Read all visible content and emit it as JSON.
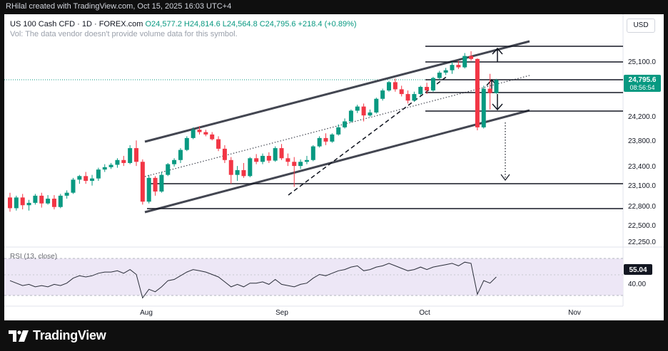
{
  "header": {
    "credit": "RHilal created with TradingView.com, Oct 15, 2025 16:03 UTC+4"
  },
  "symbol": {
    "name": "US 100 Cash CFD · 1D · FOREX.com",
    "ohlc": "O24,577.2 H24,814.6 L24,564.8 C24,795.6 +218.4 (+0.89%)",
    "vol_note": "Vol: The data vendor doesn't provide volume data for this symbol.",
    "currency": "USD"
  },
  "price_scale": {
    "ticks": [
      "25,100.0",
      "24,200.0",
      "23,800.0",
      "23,400.0",
      "23,100.0",
      "22,800.0",
      "22,500.0",
      "22,250.0"
    ],
    "last_price": "24,795.6",
    "countdown": "08:56:54"
  },
  "time_axis": {
    "labels": [
      "Aug",
      "Sep",
      "Oct",
      "Nov"
    ]
  },
  "rsi": {
    "title": "RSI (13, close)",
    "value": "55.04",
    "tick": "40.00"
  },
  "brand": {
    "logo_text": "TradingView"
  },
  "colors": {
    "up": "#089981",
    "down": "#f23645",
    "rsi_line": "#2a2e39",
    "rsi_band": "#ede7f6"
  },
  "chart_data": {
    "type": "candlestick",
    "symbol": "US 100 Cash CFD",
    "interval": "1D",
    "y_range": [
      22250,
      25300
    ],
    "x_labels": [
      "Aug",
      "Sep",
      "Oct",
      "Nov"
    ],
    "candles": [
      {
        "o": 22820,
        "h": 22900,
        "l": 22580,
        "c": 22640
      },
      {
        "o": 22640,
        "h": 22850,
        "l": 22600,
        "c": 22820
      },
      {
        "o": 22820,
        "h": 22880,
        "l": 22620,
        "c": 22690
      },
      {
        "o": 22690,
        "h": 22780,
        "l": 22600,
        "c": 22730
      },
      {
        "o": 22730,
        "h": 22880,
        "l": 22700,
        "c": 22850
      },
      {
        "o": 22850,
        "h": 22900,
        "l": 22650,
        "c": 22720
      },
      {
        "o": 22720,
        "h": 22860,
        "l": 22700,
        "c": 22800
      },
      {
        "o": 22800,
        "h": 22860,
        "l": 22620,
        "c": 22660
      },
      {
        "o": 22660,
        "h": 22880,
        "l": 22640,
        "c": 22850
      },
      {
        "o": 22850,
        "h": 22940,
        "l": 22800,
        "c": 22900
      },
      {
        "o": 22900,
        "h": 23150,
        "l": 22880,
        "c": 23120
      },
      {
        "o": 23120,
        "h": 23200,
        "l": 23050,
        "c": 23180
      },
      {
        "o": 23180,
        "h": 23250,
        "l": 23050,
        "c": 23100
      },
      {
        "o": 23100,
        "h": 23200,
        "l": 23020,
        "c": 23140
      },
      {
        "o": 23140,
        "h": 23320,
        "l": 23100,
        "c": 23290
      },
      {
        "o": 23290,
        "h": 23380,
        "l": 23250,
        "c": 23330
      },
      {
        "o": 23330,
        "h": 23400,
        "l": 23300,
        "c": 23370
      },
      {
        "o": 23370,
        "h": 23480,
        "l": 23320,
        "c": 23450
      },
      {
        "o": 23450,
        "h": 23520,
        "l": 23350,
        "c": 23400
      },
      {
        "o": 23400,
        "h": 23700,
        "l": 23380,
        "c": 23650
      },
      {
        "o": 23650,
        "h": 23780,
        "l": 23350,
        "c": 23420
      },
      {
        "o": 23420,
        "h": 23460,
        "l": 22700,
        "c": 22750
      },
      {
        "o": 22750,
        "h": 23200,
        "l": 22720,
        "c": 23150
      },
      {
        "o": 23150,
        "h": 23180,
        "l": 22850,
        "c": 22920
      },
      {
        "o": 22920,
        "h": 23250,
        "l": 22900,
        "c": 23200
      },
      {
        "o": 23200,
        "h": 23400,
        "l": 23180,
        "c": 23380
      },
      {
        "o": 23380,
        "h": 23480,
        "l": 23340,
        "c": 23450
      },
      {
        "o": 23450,
        "h": 23650,
        "l": 23400,
        "c": 23620
      },
      {
        "o": 23620,
        "h": 23850,
        "l": 23600,
        "c": 23820
      },
      {
        "o": 23820,
        "h": 24000,
        "l": 23800,
        "c": 23960
      },
      {
        "o": 23960,
        "h": 24020,
        "l": 23880,
        "c": 23920
      },
      {
        "o": 23920,
        "h": 23960,
        "l": 23850,
        "c": 23880
      },
      {
        "o": 23880,
        "h": 23920,
        "l": 23780,
        "c": 23800
      },
      {
        "o": 23800,
        "h": 23850,
        "l": 23600,
        "c": 23640
      },
      {
        "o": 23640,
        "h": 23700,
        "l": 23400,
        "c": 23450
      },
      {
        "o": 23450,
        "h": 23500,
        "l": 23050,
        "c": 23200
      },
      {
        "o": 23200,
        "h": 23350,
        "l": 23100,
        "c": 23280
      },
      {
        "o": 23280,
        "h": 23400,
        "l": 23150,
        "c": 23180
      },
      {
        "o": 23180,
        "h": 23500,
        "l": 23160,
        "c": 23480
      },
      {
        "o": 23480,
        "h": 23550,
        "l": 23380,
        "c": 23420
      },
      {
        "o": 23420,
        "h": 23560,
        "l": 23380,
        "c": 23520
      },
      {
        "o": 23520,
        "h": 23580,
        "l": 23400,
        "c": 23440
      },
      {
        "o": 23440,
        "h": 23680,
        "l": 23420,
        "c": 23650
      },
      {
        "o": 23650,
        "h": 23720,
        "l": 23450,
        "c": 23480
      },
      {
        "o": 23480,
        "h": 23560,
        "l": 23350,
        "c": 23420
      },
      {
        "o": 23420,
        "h": 23500,
        "l": 23000,
        "c": 23350
      },
      {
        "o": 23350,
        "h": 23460,
        "l": 23300,
        "c": 23420
      },
      {
        "o": 23420,
        "h": 23520,
        "l": 23380,
        "c": 23450
      },
      {
        "o": 23450,
        "h": 23700,
        "l": 23430,
        "c": 23680
      },
      {
        "o": 23680,
        "h": 23850,
        "l": 23660,
        "c": 23820
      },
      {
        "o": 23820,
        "h": 23900,
        "l": 23700,
        "c": 23760
      },
      {
        "o": 23760,
        "h": 23900,
        "l": 23740,
        "c": 23880
      },
      {
        "o": 23880,
        "h": 24050,
        "l": 23860,
        "c": 24000
      },
      {
        "o": 24000,
        "h": 24150,
        "l": 23980,
        "c": 24100
      },
      {
        "o": 24100,
        "h": 24300,
        "l": 24080,
        "c": 24280
      },
      {
        "o": 24280,
        "h": 24380,
        "l": 24240,
        "c": 24350
      },
      {
        "o": 24350,
        "h": 24400,
        "l": 24100,
        "c": 24200
      },
      {
        "o": 24200,
        "h": 24300,
        "l": 24180,
        "c": 24250
      },
      {
        "o": 24250,
        "h": 24500,
        "l": 24230,
        "c": 24480
      },
      {
        "o": 24480,
        "h": 24650,
        "l": 24450,
        "c": 24620
      },
      {
        "o": 24620,
        "h": 24780,
        "l": 24600,
        "c": 24760
      },
      {
        "o": 24760,
        "h": 24820,
        "l": 24600,
        "c": 24640
      },
      {
        "o": 24640,
        "h": 24700,
        "l": 24520,
        "c": 24560
      },
      {
        "o": 24560,
        "h": 24620,
        "l": 24400,
        "c": 24450
      },
      {
        "o": 24450,
        "h": 24600,
        "l": 24430,
        "c": 24560
      },
      {
        "o": 24560,
        "h": 24700,
        "l": 24540,
        "c": 24680
      },
      {
        "o": 24680,
        "h": 24750,
        "l": 24560,
        "c": 24620
      },
      {
        "o": 24620,
        "h": 24850,
        "l": 24600,
        "c": 24830
      },
      {
        "o": 24830,
        "h": 24950,
        "l": 24800,
        "c": 24920
      },
      {
        "o": 24920,
        "h": 25000,
        "l": 24880,
        "c": 24960
      },
      {
        "o": 24960,
        "h": 25100,
        "l": 24900,
        "c": 25050
      },
      {
        "o": 25050,
        "h": 25120,
        "l": 24980,
        "c": 25010
      },
      {
        "o": 25010,
        "h": 25250,
        "l": 24990,
        "c": 25200
      },
      {
        "o": 25200,
        "h": 25280,
        "l": 25120,
        "c": 25150
      },
      {
        "o": 25150,
        "h": 25160,
        "l": 23950,
        "c": 24000
      },
      {
        "o": 24000,
        "h": 24700,
        "l": 23980,
        "c": 24650
      },
      {
        "o": 24650,
        "h": 24900,
        "l": 24300,
        "c": 24577
      },
      {
        "o": 24577.2,
        "h": 24814.6,
        "l": 24564.8,
        "c": 24795.6
      }
    ],
    "rsi_values": [
      52,
      50,
      48,
      49,
      47,
      48,
      47,
      49,
      48,
      50,
      54,
      56,
      55,
      56,
      58,
      59,
      59,
      60,
      58,
      61,
      57,
      38,
      45,
      43,
      47,
      52,
      53,
      56,
      59,
      61,
      60,
      59,
      57,
      55,
      51,
      47,
      49,
      47,
      50,
      50,
      51,
      49,
      53,
      49,
      48,
      47,
      49,
      50,
      54,
      57,
      56,
      58,
      60,
      61,
      63,
      64,
      60,
      61,
      63,
      64,
      66,
      64,
      62,
      60,
      61,
      63,
      61,
      63,
      64,
      65,
      66,
      64,
      67,
      66,
      41,
      52,
      50,
      55
    ]
  }
}
